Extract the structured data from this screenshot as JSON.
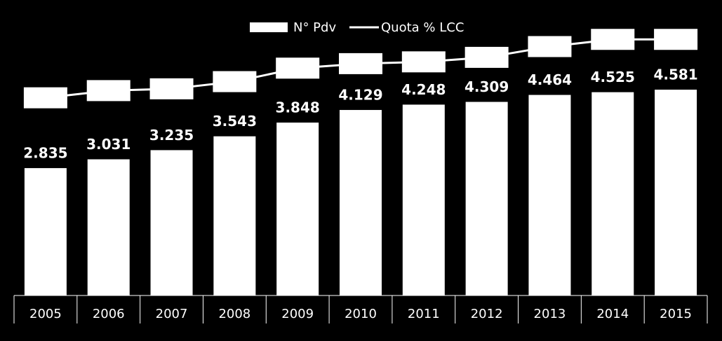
{
  "chart_data": {
    "type": "bar",
    "categories": [
      "2005",
      "2006",
      "2007",
      "2008",
      "2009",
      "2010",
      "2011",
      "2012",
      "2013",
      "2014",
      "2015"
    ],
    "series": [
      {
        "name": "N° Pdv",
        "color": "#ffffff",
        "values": [
          2835,
          3031,
          3235,
          3543,
          3848,
          4129,
          4248,
          4309,
          4464,
          4525,
          4581
        ],
        "value_labels": [
          "2.835",
          "3.031",
          "3.235",
          "3.543",
          "3.848",
          "4.129",
          "4.248",
          "4.309",
          "4.464",
          "4.525",
          "4.581"
        ]
      },
      {
        "name": "Quota % LCC",
        "color": "#ffffff",
        "type": "line",
        "axis": "y2",
        "values": [
          22.0,
          22.8,
          23.0,
          23.8,
          25.3,
          25.8,
          26.0,
          26.5,
          27.7,
          28.5,
          28.5
        ]
      }
    ],
    "ylim": [
      0,
      6000
    ],
    "y2lim": [
      0,
      30
    ]
  }
}
